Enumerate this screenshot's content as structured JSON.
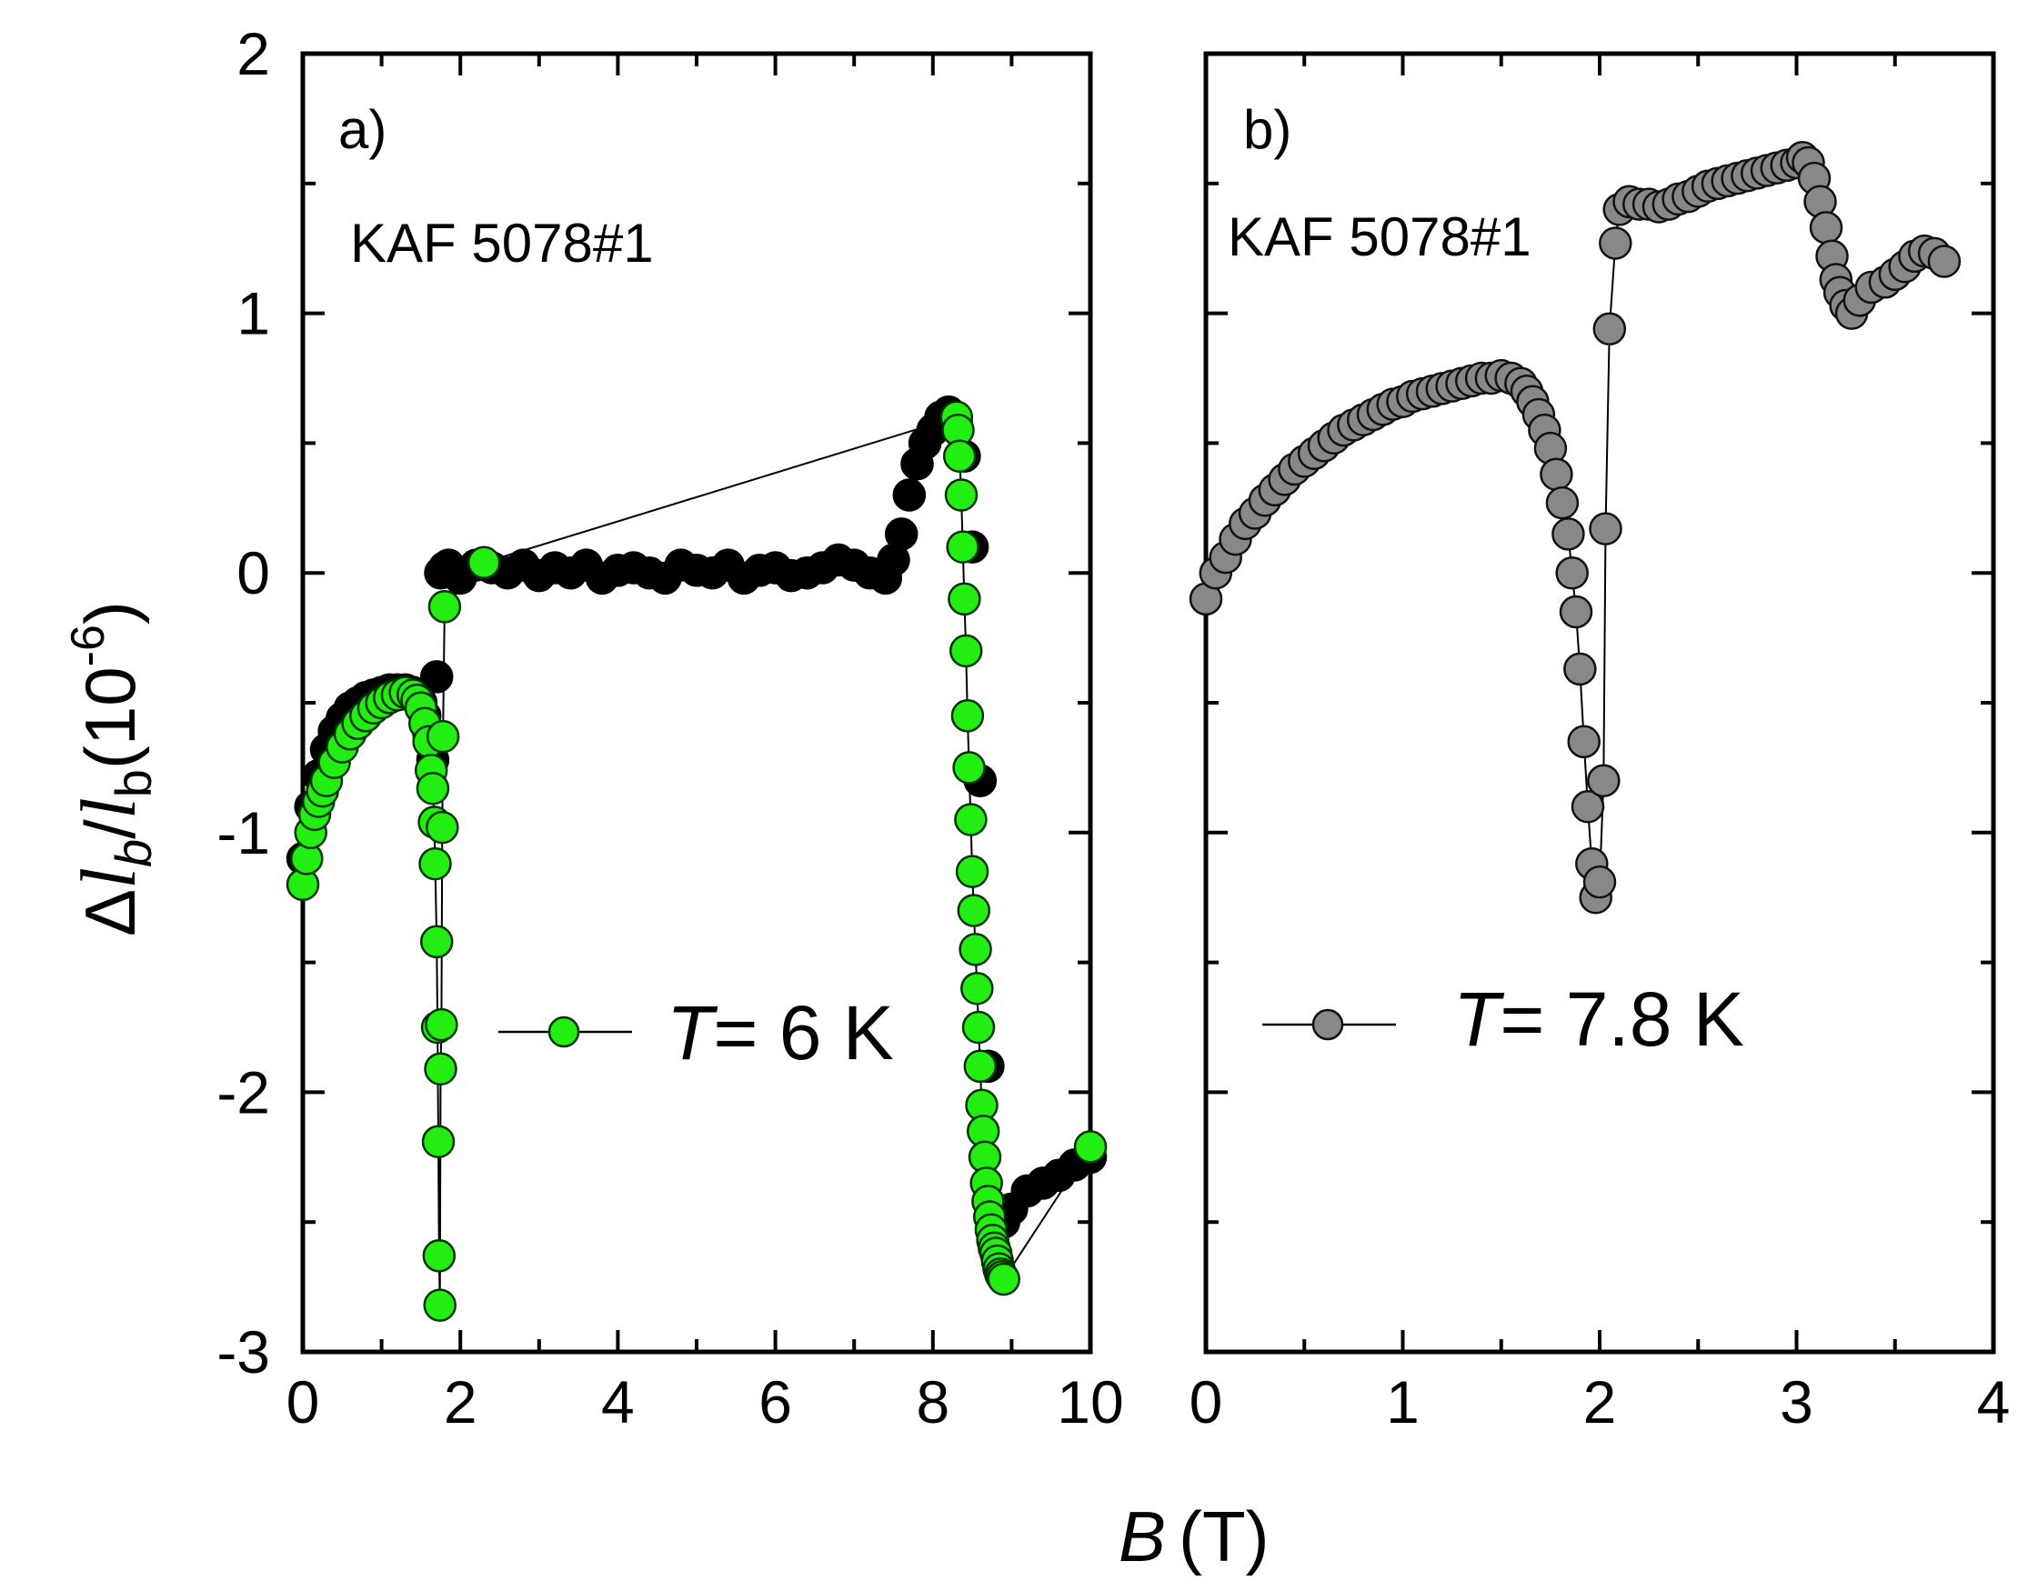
{
  "chart_data": [
    {
      "type": "scatter",
      "panel_label": "a)",
      "sample_label": "KAF 5078#1",
      "legend": {
        "prefix": "T",
        "suffix": "= 6 K",
        "placement": "center"
      },
      "xlim": [
        0,
        10
      ],
      "ylim": [
        -3,
        2
      ],
      "x_ticks": [
        "0",
        "2",
        "4",
        "6",
        "8",
        "10"
      ],
      "y_ticks": [
        "-3",
        "-2",
        "-1",
        "0",
        "1",
        "2"
      ],
      "colors": {
        "marker": "#22ee11",
        "marker_edge": "#003300",
        "overlay": "#000000"
      },
      "series": [
        {
          "role": "overlay-black",
          "x": [
            0.0,
            0.1,
            0.2,
            0.3,
            0.4,
            0.5,
            0.6,
            0.7,
            0.8,
            0.9,
            1.0,
            1.1,
            1.2,
            1.3,
            1.4,
            1.5,
            1.55,
            1.6,
            1.65,
            1.7,
            1.75,
            1.8,
            1.85,
            1.9,
            2.0,
            2.2,
            2.4,
            2.6,
            2.8,
            3.0,
            3.2,
            3.4,
            3.6,
            3.8,
            4.0,
            4.2,
            4.4,
            4.6,
            4.8,
            5.0,
            5.2,
            5.4,
            5.6,
            5.8,
            6.0,
            6.2,
            6.4,
            6.6,
            6.8,
            7.0,
            7.2,
            7.4,
            7.5,
            7.6,
            7.7,
            7.8,
            7.9,
            8.0,
            8.1,
            8.2,
            8.3,
            8.4,
            8.5,
            8.6,
            8.7,
            8.8,
            8.9,
            9.0,
            9.2,
            9.4,
            9.6,
            9.8,
            10.0
          ],
          "y": [
            -1.1,
            -0.9,
            -0.78,
            -0.68,
            -0.61,
            -0.56,
            -0.52,
            -0.5,
            -0.48,
            -0.47,
            -0.46,
            -0.45,
            -0.45,
            -0.45,
            -0.46,
            -0.5,
            -0.55,
            -0.62,
            -0.72,
            -0.4,
            0.0,
            0.02,
            0.03,
            0.0,
            -0.02,
            0.03,
            0.02,
            0.0,
            0.03,
            -0.01,
            0.02,
            0.0,
            0.03,
            -0.02,
            0.01,
            0.02,
            0.0,
            -0.02,
            0.03,
            0.01,
            0.0,
            0.03,
            -0.02,
            0.01,
            0.02,
            -0.01,
            0.0,
            0.02,
            0.05,
            0.03,
            0.0,
            -0.02,
            0.05,
            0.15,
            0.3,
            0.42,
            0.5,
            0.55,
            0.6,
            0.62,
            0.58,
            0.45,
            0.1,
            -0.8,
            -1.9,
            -2.45,
            -2.5,
            -2.45,
            -2.38,
            -2.35,
            -2.32,
            -2.28,
            -2.25
          ]
        },
        {
          "role": "green",
          "x": [
            0.0,
            0.05,
            0.1,
            0.15,
            0.2,
            0.25,
            0.3,
            0.4,
            0.5,
            0.6,
            0.7,
            0.8,
            0.9,
            1.0,
            1.1,
            1.2,
            1.3,
            1.4,
            1.45,
            1.5,
            1.55,
            1.6,
            1.63,
            1.65,
            1.67,
            1.68,
            1.7,
            1.71,
            1.72,
            1.73,
            1.74,
            1.75,
            1.76,
            1.77,
            1.78,
            1.8,
            2.3,
            8.3,
            8.32,
            8.34,
            8.36,
            8.38,
            8.4,
            8.42,
            8.44,
            8.46,
            8.48,
            8.5,
            8.52,
            8.54,
            8.56,
            8.58,
            8.6,
            8.62,
            8.64,
            8.66,
            8.68,
            8.7,
            8.72,
            8.74,
            8.76,
            8.78,
            8.8,
            8.82,
            8.84,
            8.86,
            8.88,
            8.9,
            10.0
          ],
          "y": [
            -1.2,
            -1.1,
            -1.0,
            -0.93,
            -0.88,
            -0.84,
            -0.8,
            -0.73,
            -0.67,
            -0.62,
            -0.58,
            -0.55,
            -0.52,
            -0.5,
            -0.48,
            -0.47,
            -0.46,
            -0.47,
            -0.49,
            -0.52,
            -0.58,
            -0.65,
            -0.76,
            -0.83,
            -0.96,
            -1.12,
            -1.42,
            -1.75,
            -2.19,
            -2.63,
            -2.82,
            -1.91,
            -1.74,
            -0.98,
            -0.63,
            -0.13,
            0.04,
            0.6,
            0.55,
            0.45,
            0.3,
            0.1,
            -0.1,
            -0.3,
            -0.55,
            -0.75,
            -0.95,
            -1.15,
            -1.3,
            -1.45,
            -1.6,
            -1.75,
            -1.9,
            -2.05,
            -2.15,
            -2.25,
            -2.35,
            -2.42,
            -2.48,
            -2.53,
            -2.57,
            -2.6,
            -2.62,
            -2.65,
            -2.68,
            -2.7,
            -2.71,
            -2.72,
            -2.21
          ]
        }
      ]
    },
    {
      "type": "scatter",
      "panel_label": "b)",
      "sample_label": "KAF 5078#1",
      "legend": {
        "prefix": "T",
        "suffix": "= 7.8 K",
        "placement": "center"
      },
      "xlim": [
        0,
        4
      ],
      "ylim": [
        -3,
        2
      ],
      "x_ticks": [
        "0",
        "1",
        "2",
        "3",
        "4"
      ],
      "colors": {
        "marker": "#888888",
        "marker_edge": "#111111"
      },
      "series": [
        {
          "role": "gray",
          "x": [
            0.0,
            0.05,
            0.1,
            0.15,
            0.2,
            0.25,
            0.3,
            0.35,
            0.4,
            0.45,
            0.5,
            0.55,
            0.6,
            0.65,
            0.7,
            0.75,
            0.8,
            0.85,
            0.9,
            0.95,
            1.0,
            1.05,
            1.1,
            1.15,
            1.2,
            1.25,
            1.3,
            1.35,
            1.4,
            1.45,
            1.5,
            1.55,
            1.6,
            1.63,
            1.66,
            1.69,
            1.72,
            1.75,
            1.78,
            1.81,
            1.84,
            1.86,
            1.88,
            1.9,
            1.92,
            1.94,
            1.96,
            1.98,
            2.0,
            2.02,
            2.03,
            2.05,
            2.08,
            2.1,
            2.15,
            2.2,
            2.25,
            2.3,
            2.35,
            2.4,
            2.45,
            2.5,
            2.55,
            2.6,
            2.65,
            2.7,
            2.75,
            2.8,
            2.85,
            2.9,
            2.95,
            3.0,
            3.03,
            3.06,
            3.09,
            3.12,
            3.15,
            3.18,
            3.2,
            3.22,
            3.25,
            3.28,
            3.32,
            3.38,
            3.45,
            3.5,
            3.55,
            3.6,
            3.65,
            3.7,
            3.75
          ],
          "y": [
            -0.1,
            0.0,
            0.06,
            0.13,
            0.19,
            0.23,
            0.28,
            0.32,
            0.36,
            0.4,
            0.43,
            0.46,
            0.49,
            0.52,
            0.55,
            0.57,
            0.59,
            0.61,
            0.63,
            0.65,
            0.66,
            0.68,
            0.69,
            0.7,
            0.71,
            0.72,
            0.73,
            0.74,
            0.75,
            0.75,
            0.76,
            0.75,
            0.73,
            0.7,
            0.66,
            0.61,
            0.55,
            0.48,
            0.38,
            0.27,
            0.15,
            0.0,
            -0.15,
            -0.37,
            -0.65,
            -0.9,
            -1.12,
            -1.25,
            -1.19,
            -0.8,
            0.17,
            0.94,
            1.27,
            1.4,
            1.43,
            1.42,
            1.42,
            1.41,
            1.42,
            1.44,
            1.45,
            1.47,
            1.49,
            1.5,
            1.51,
            1.52,
            1.53,
            1.54,
            1.55,
            1.56,
            1.57,
            1.58,
            1.6,
            1.58,
            1.52,
            1.43,
            1.33,
            1.22,
            1.13,
            1.08,
            1.03,
            1.0,
            1.05,
            1.1,
            1.12,
            1.15,
            1.18,
            1.22,
            1.24,
            1.23,
            1.2
          ]
        }
      ]
    }
  ],
  "x_axis_title": {
    "symbol": "B",
    "unit": "(T)"
  },
  "y_axis_title": {
    "prefix": "Δ",
    "l1": "l",
    "s1": "b",
    "slash": "/",
    "l2": "l",
    "s2": "b",
    "unit_open": "(10",
    "exp": "-6",
    "unit_close": ")"
  }
}
